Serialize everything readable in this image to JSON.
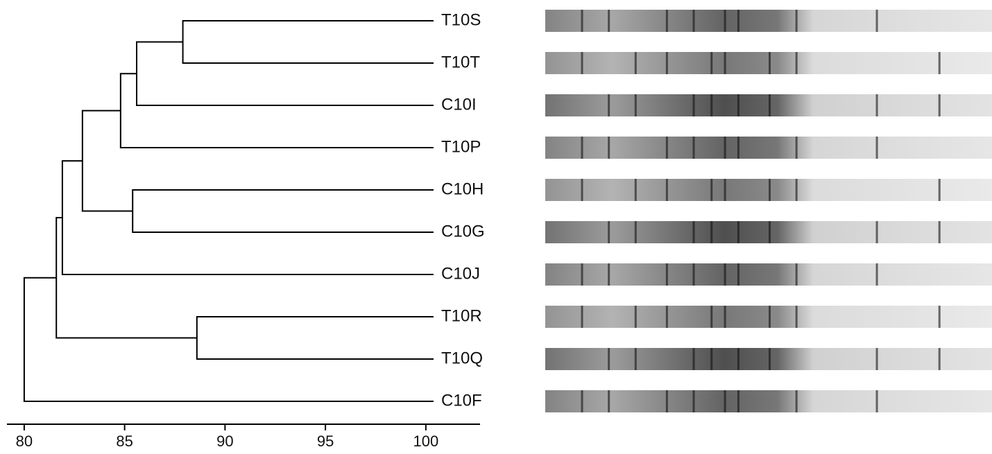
{
  "chart_data": {
    "type": "dendrogram",
    "xlim": [
      79.14,
      102.7
    ],
    "xticks": [
      80,
      85,
      90,
      95,
      100
    ],
    "tree": {
      "height": 80.0,
      "children": [
        {
          "height": 81.6,
          "children": [
            {
              "height": 81.9,
              "children": [
                {
                  "height": 82.9,
                  "children": [
                    {
                      "height": 84.8,
                      "children": [
                        {
                          "height": 85.6,
                          "children": [
                            {
                              "height": 87.9,
                              "children": [
                                "T10S",
                                "T10T"
                              ]
                            },
                            "C10I"
                          ]
                        },
                        "T10P"
                      ]
                    },
                    {
                      "height": 85.4,
                      "children": [
                        "C10H",
                        "C10G"
                      ]
                    }
                  ]
                },
                "C10J"
              ]
            },
            {
              "height": 88.6,
              "children": [
                "T10R",
                "T10Q"
              ]
            }
          ]
        },
        "C10F"
      ]
    }
  }
}
